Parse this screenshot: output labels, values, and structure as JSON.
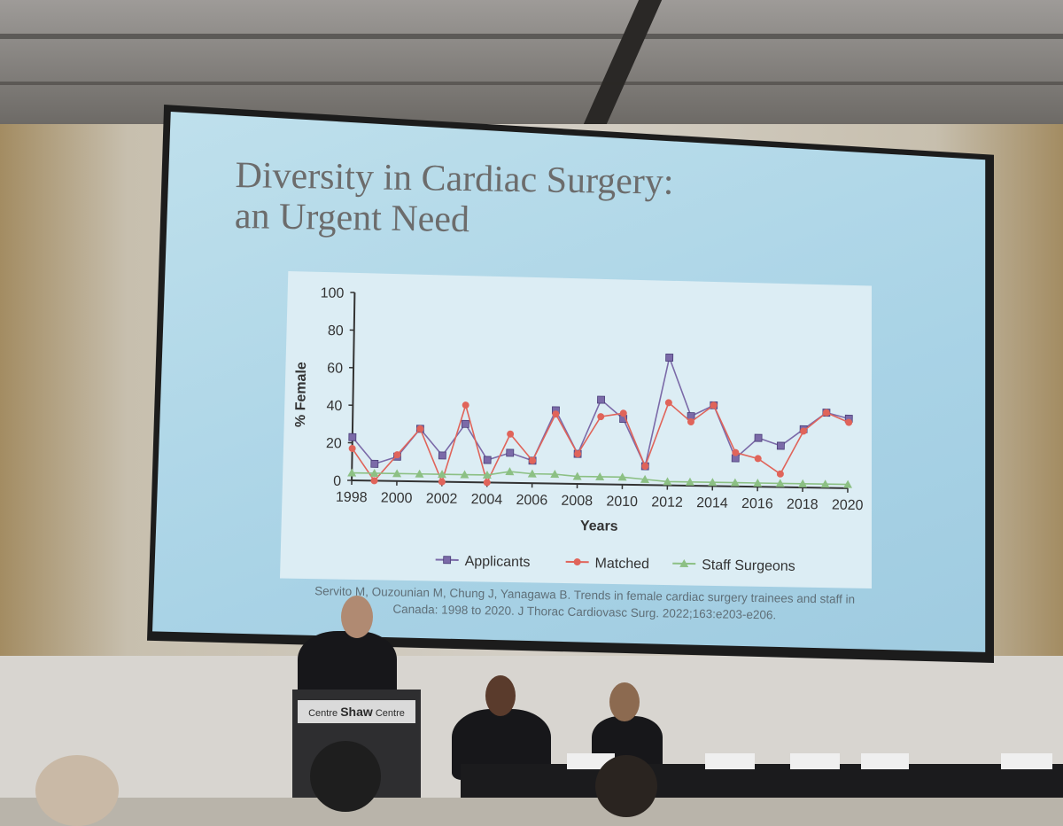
{
  "slide": {
    "title_line1": "Diversity in Cardiac Surgery:",
    "title_line2": "an Urgent Need",
    "citation_line1": "Servito M, Ouzounian M, Chung J, Yanagawa B. Trends in female cardiac surgery trainees and staff in",
    "citation_line2": "Canada: 1998 to 2020. J Thorac Cardiovasc Surg. 2022;163:e203-e206."
  },
  "podium": {
    "sign_left": "Centre",
    "sign_brand": "Shaw",
    "sign_right": "Centre"
  },
  "chart_data": {
    "type": "line",
    "title": "",
    "xlabel": "Years",
    "ylabel": "% Female",
    "xlim": [
      1998,
      2020
    ],
    "ylim": [
      0,
      100
    ],
    "x_ticks": [
      1998,
      2000,
      2002,
      2004,
      2006,
      2008,
      2010,
      2012,
      2014,
      2016,
      2018,
      2020
    ],
    "y_ticks": [
      0,
      20,
      40,
      60,
      80,
      100
    ],
    "legend_position": "bottom",
    "x": [
      1998,
      1999,
      2000,
      2001,
      2002,
      2003,
      2004,
      2005,
      2006,
      2007,
      2008,
      2009,
      2010,
      2011,
      2012,
      2013,
      2014,
      2015,
      2016,
      2017,
      2018,
      2019,
      2020
    ],
    "series": [
      {
        "name": "Applicants",
        "marker": "square",
        "color": "#7b6aa8",
        "values": [
          23,
          9,
          13,
          28,
          14,
          31,
          12,
          16,
          12,
          39,
          16,
          45,
          35,
          10,
          68,
          37,
          43,
          15,
          26,
          22,
          31,
          40,
          37
        ]
      },
      {
        "name": "Matched",
        "marker": "circle",
        "color": "#e0645a",
        "values": [
          17,
          0,
          14,
          28,
          0,
          41,
          0,
          26,
          12,
          37,
          16,
          36,
          38,
          10,
          44,
          34,
          43,
          18,
          15,
          7,
          30,
          40,
          35
        ]
      },
      {
        "name": "Staff Surgeons",
        "marker": "triangle",
        "color": "#8cc084",
        "values": [
          4,
          4,
          4,
          4,
          4,
          4,
          4,
          6,
          5,
          5,
          4,
          4,
          4,
          3,
          2,
          2,
          2,
          2,
          2,
          2,
          2,
          2,
          2
        ]
      }
    ]
  }
}
